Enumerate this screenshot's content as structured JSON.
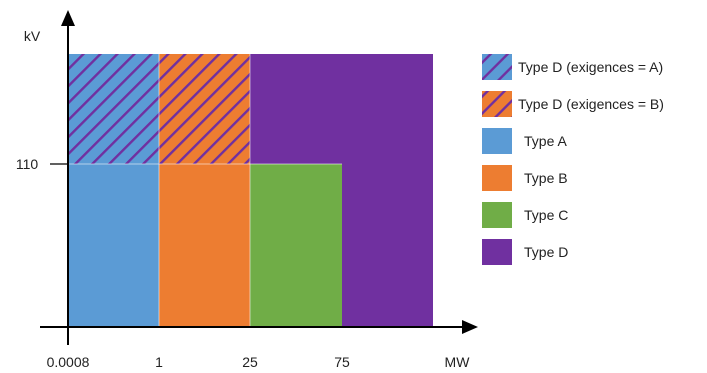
{
  "chart_data": {
    "type": "area",
    "title": "",
    "xlabel": "MW",
    "ylabel": "kV",
    "x_ticks": [
      "0.0008",
      "1",
      "25",
      "75"
    ],
    "y_ticks": [
      "110"
    ],
    "regions": [
      {
        "name": "Type A",
        "x_from": "0.0008",
        "x_to": "1",
        "y_from": "0",
        "y_to": "110",
        "fill": "#5B9BD5"
      },
      {
        "name": "Type B",
        "x_from": "1",
        "x_to": "25",
        "y_from": "0",
        "y_to": "110",
        "fill": "#ED7D31"
      },
      {
        "name": "Type C",
        "x_from": "25",
        "x_to": "75",
        "y_from": "0",
        "y_to": "110",
        "fill": "#70AD47"
      },
      {
        "name": "Type D",
        "x_from": "25",
        "x_to": "max",
        "y_from": "110",
        "y_to": "max",
        "fill": "#7030A0"
      },
      {
        "name": "Type D",
        "x_from": "75",
        "x_to": "max",
        "y_from": "0",
        "y_to": "110",
        "fill": "#7030A0"
      },
      {
        "name": "Type D (exigences = A)",
        "x_from": "0.0008",
        "x_to": "1",
        "y_from": "110",
        "y_to": "max",
        "fill": "#5B9BD5",
        "hatch": "#7030A0"
      },
      {
        "name": "Type D (exigences = B)",
        "x_from": "1",
        "x_to": "25",
        "y_from": "110",
        "y_to": "max",
        "fill": "#ED7D31",
        "hatch": "#7030A0"
      }
    ],
    "legend": [
      {
        "label": "Type D (exigences = A)",
        "fill": "#5B9BD5",
        "hatch": "#7030A0"
      },
      {
        "label": "Type D (exigences = B)",
        "fill": "#ED7D31",
        "hatch": "#7030A0"
      },
      {
        "label": "Type A",
        "fill": "#5B9BD5"
      },
      {
        "label": "Type B",
        "fill": "#ED7D31"
      },
      {
        "label": "Type C",
        "fill": "#70AD47"
      },
      {
        "label": "Type D",
        "fill": "#7030A0"
      }
    ],
    "legend_position": "right",
    "grid": false
  }
}
